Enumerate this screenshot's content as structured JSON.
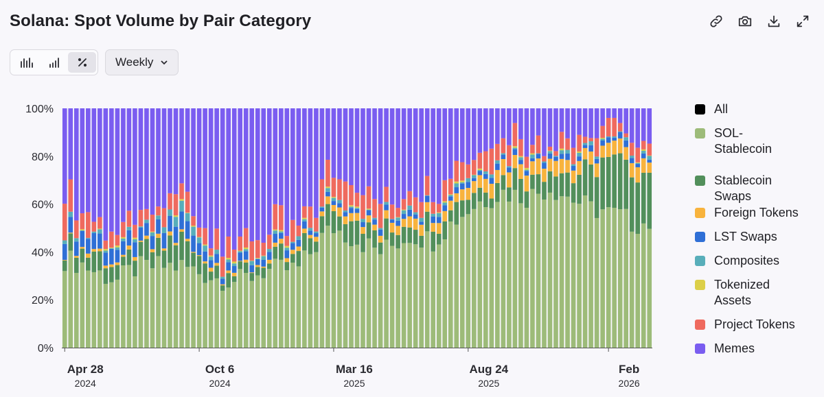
{
  "title": "Solana: Spot Volume by Pair Category",
  "toolbar": {
    "icons": [
      "link-icon",
      "camera-icon",
      "download-icon",
      "expand-icon"
    ]
  },
  "controls": {
    "chart_modes": [
      "bar-chart-icon",
      "bar-chart-stacked-icon",
      "percent-icon"
    ],
    "active_mode": "percent-icon",
    "interval": "Weekly"
  },
  "legend": [
    {
      "key": "all",
      "label": "All",
      "color": "#000000"
    },
    {
      "key": "sol_stable",
      "label": "SOL-Stablecoin",
      "color": "#9dbb79"
    },
    {
      "key": "stable_swaps",
      "label": "Stablecoin Swaps",
      "color": "#528f5b"
    },
    {
      "key": "foreign",
      "label": "Foreign Tokens",
      "color": "#f8b33d"
    },
    {
      "key": "lst",
      "label": "LST Swaps",
      "color": "#2f6fd6"
    },
    {
      "key": "composites",
      "label": "Composites",
      "color": "#58aeba"
    },
    {
      "key": "tokenized",
      "label": "Tokenized Assets",
      "color": "#dccf49"
    },
    {
      "key": "project",
      "label": "Project Tokens",
      "color": "#ef6a5e"
    },
    {
      "key": "memes",
      "label": "Memes",
      "color": "#7a5df0"
    }
  ],
  "chart_data": {
    "type": "bar",
    "stacked": true,
    "normalized": true,
    "interval": "weekly",
    "ylim": [
      0,
      100
    ],
    "y_ticks": [
      "0%",
      "20%",
      "40%",
      "60%",
      "80%",
      "100%"
    ],
    "x_ticks": [
      {
        "label": "Apr 28",
        "sub": "2024",
        "index": 0
      },
      {
        "label": "Oct 6",
        "sub": "2024",
        "index": 23
      },
      {
        "label": "Mar 16",
        "sub": "2025",
        "index": 46
      },
      {
        "label": "Aug 24",
        "sub": "2025",
        "index": 69
      },
      {
        "label": "Feb",
        "sub": "2026",
        "index": 93
      }
    ],
    "series_order": [
      "sol_stable",
      "stable_swaps",
      "foreign",
      "lst",
      "composites",
      "tokenized",
      "project",
      "memes"
    ],
    "anchors": [
      {
        "i": 0,
        "v": [
          37,
          6,
          1,
          7,
          2,
          0,
          12
        ]
      },
      {
        "i": 3,
        "v": [
          35,
          6,
          1,
          6,
          1,
          0,
          10
        ]
      },
      {
        "i": 5,
        "v": [
          32,
          7,
          1,
          6,
          1,
          0,
          7
        ]
      },
      {
        "i": 9,
        "v": [
          28,
          6,
          1,
          6,
          1,
          0,
          5
        ]
      },
      {
        "i": 12,
        "v": [
          33,
          6,
          1,
          6,
          1,
          0,
          4
        ]
      },
      {
        "i": 16,
        "v": [
          34,
          8,
          1,
          6,
          2,
          0,
          5
        ]
      },
      {
        "i": 20,
        "v": [
          34,
          10,
          1,
          8,
          4,
          0,
          6
        ]
      },
      {
        "i": 26,
        "v": [
          29,
          4,
          1,
          3,
          1,
          0,
          6
        ]
      },
      {
        "i": 30,
        "v": [
          28,
          4,
          1,
          3,
          1,
          0,
          7
        ]
      },
      {
        "i": 34,
        "v": [
          32,
          4,
          1,
          3,
          1,
          0,
          8
        ]
      },
      {
        "i": 40,
        "v": [
          33,
          5,
          2,
          3,
          1,
          0,
          6
        ]
      },
      {
        "i": 44,
        "v": [
          46,
          7,
          2,
          2,
          1,
          0,
          8
        ]
      },
      {
        "i": 46,
        "v": [
          50,
          8,
          3,
          2,
          1,
          0,
          10
        ]
      },
      {
        "i": 50,
        "v": [
          45,
          8,
          3,
          2,
          1,
          0,
          8
        ]
      },
      {
        "i": 54,
        "v": [
          40,
          7,
          3,
          2,
          1,
          0,
          7
        ]
      },
      {
        "i": 59,
        "v": [
          47,
          6,
          4,
          2,
          1,
          0,
          5
        ]
      },
      {
        "i": 63,
        "v": [
          45,
          6,
          4,
          2,
          1,
          0,
          6
        ]
      },
      {
        "i": 67,
        "v": [
          54,
          7,
          4,
          2,
          1,
          0,
          7
        ]
      },
      {
        "i": 71,
        "v": [
          61,
          6,
          5,
          2,
          1,
          0,
          8
        ]
      },
      {
        "i": 75,
        "v": [
          65,
          7,
          6,
          2,
          1,
          0,
          8
        ]
      },
      {
        "i": 79,
        "v": [
          63,
          8,
          6,
          2,
          1,
          0,
          7
        ]
      },
      {
        "i": 83,
        "v": [
          67,
          8,
          6,
          2,
          1,
          0,
          5
        ]
      },
      {
        "i": 87,
        "v": [
          62,
          10,
          5,
          2,
          1,
          0,
          4
        ]
      },
      {
        "i": 90,
        "v": [
          58,
          17,
          5,
          2,
          1,
          0,
          4
        ]
      },
      {
        "i": 94,
        "v": [
          57,
          22,
          6,
          2,
          1,
          0,
          5
        ]
      },
      {
        "i": 97,
        "v": [
          52,
          21,
          6,
          2,
          1,
          0,
          4
        ]
      },
      {
        "i": 100,
        "v": [
          52,
          23,
          5,
          2,
          1,
          0,
          3
        ]
      }
    ],
    "num_bars": 101
  }
}
